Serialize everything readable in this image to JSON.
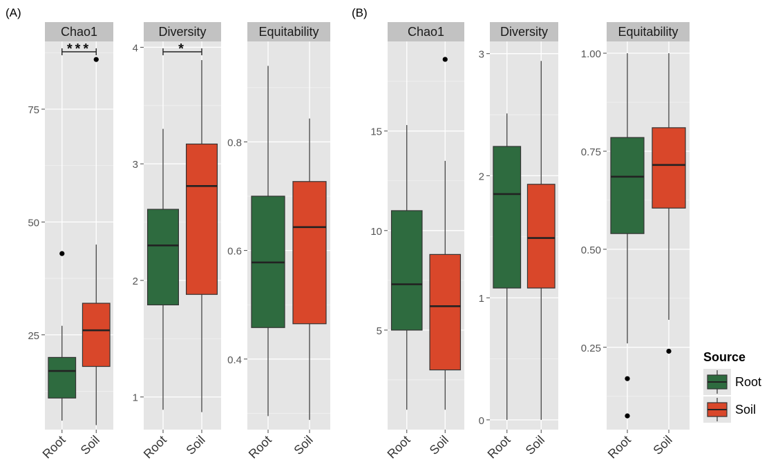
{
  "colors": {
    "Root": "#2e6b3f",
    "Soil": "#d9472a",
    "panel_bg": "#e5e5e5",
    "strip_bg": "#c2c2c2",
    "grid": "#ffffff",
    "box_outline": "#333333"
  },
  "legend": {
    "title": "Source",
    "entries": [
      "Root",
      "Soil"
    ],
    "placement": "right"
  },
  "figure_labels": [
    "(A)",
    "(B)"
  ],
  "chart_data": [
    {
      "type": "box",
      "figure": "(A)",
      "title": "Chao1",
      "categories": [
        "Root",
        "Soil"
      ],
      "ylim": [
        4,
        90
      ],
      "yticks": [
        25,
        50,
        75
      ],
      "ytick_labels": [
        "25",
        "50",
        "75"
      ],
      "boxes": [
        {
          "name": "Root",
          "min": 6,
          "q1": 11,
          "median": 17,
          "q3": 20,
          "max": 27,
          "outliers": [
            43
          ]
        },
        {
          "name": "Soil",
          "min": 5,
          "q1": 18,
          "median": 26,
          "q3": 32,
          "max": 45,
          "outliers": [
            86
          ]
        }
      ],
      "significance": "***"
    },
    {
      "type": "box",
      "figure": "(A)",
      "title": "Diversity",
      "categories": [
        "Root",
        "Soil"
      ],
      "ylim": [
        0.72,
        4.05
      ],
      "yticks": [
        1,
        2,
        3,
        4
      ],
      "ytick_labels": [
        "1",
        "2",
        "3",
        "4"
      ],
      "boxes": [
        {
          "name": "Root",
          "min": 0.89,
          "q1": 1.79,
          "median": 2.3,
          "q3": 2.61,
          "max": 3.3,
          "outliers": []
        },
        {
          "name": "Soil",
          "min": 0.87,
          "q1": 1.88,
          "median": 2.81,
          "q3": 3.17,
          "max": 3.89,
          "outliers": []
        }
      ],
      "significance": "*"
    },
    {
      "type": "box",
      "figure": "(A)",
      "title": "Equitability",
      "categories": [
        "Root",
        "Soil"
      ],
      "ylim": [
        0.27,
        0.985
      ],
      "yticks": [
        0.4,
        0.6,
        0.8
      ],
      "ytick_labels": [
        "0.4",
        "0.6",
        "0.8"
      ],
      "boxes": [
        {
          "name": "Root",
          "min": 0.295,
          "q1": 0.458,
          "median": 0.578,
          "q3": 0.7,
          "max": 0.94,
          "outliers": []
        },
        {
          "name": "Soil",
          "min": 0.288,
          "q1": 0.465,
          "median": 0.643,
          "q3": 0.727,
          "max": 0.843,
          "outliers": []
        }
      ],
      "significance": ""
    },
    {
      "type": "box",
      "figure": "(B)",
      "title": "Chao1",
      "categories": [
        "Root",
        "Soil"
      ],
      "ylim": [
        0,
        19.5
      ],
      "yticks": [
        5,
        10,
        15
      ],
      "ytick_labels": [
        "5",
        "10",
        "15"
      ],
      "boxes": [
        {
          "name": "Root",
          "min": 1,
          "q1": 5,
          "median": 7.3,
          "q3": 11,
          "max": 15.3,
          "outliers": []
        },
        {
          "name": "Soil",
          "min": 1,
          "q1": 3,
          "median": 6.2,
          "q3": 8.8,
          "max": 13.5,
          "outliers": [
            18.6
          ]
        }
      ],
      "significance": ""
    },
    {
      "type": "box",
      "figure": "(B)",
      "title": "Diversity",
      "categories": [
        "Root",
        "Soil"
      ],
      "ylim": [
        -0.08,
        3.1
      ],
      "yticks": [
        0,
        1,
        2,
        3
      ],
      "ytick_labels": [
        "0",
        "1",
        "2",
        "3"
      ],
      "boxes": [
        {
          "name": "Root",
          "min": 0,
          "q1": 1.08,
          "median": 1.85,
          "q3": 2.24,
          "max": 2.51,
          "outliers": []
        },
        {
          "name": "Soil",
          "min": 0,
          "q1": 1.08,
          "median": 1.49,
          "q3": 1.93,
          "max": 2.94,
          "outliers": []
        }
      ],
      "significance": ""
    },
    {
      "type": "box",
      "figure": "(B)",
      "title": "Equitability",
      "categories": [
        "Root",
        "Soil"
      ],
      "ylim": [
        0.04,
        1.03
      ],
      "yticks": [
        0.25,
        0.5,
        0.75,
        1.0
      ],
      "ytick_labels": [
        "0.25",
        "0.50",
        "0.75",
        "1.00"
      ],
      "boxes": [
        {
          "name": "Root",
          "min": 0.26,
          "q1": 0.54,
          "median": 0.685,
          "q3": 0.785,
          "max": 1.0,
          "outliers": [
            0.17,
            0.075
          ]
        },
        {
          "name": "Soil",
          "min": 0.32,
          "q1": 0.605,
          "median": 0.715,
          "q3": 0.81,
          "max": 1.0,
          "outliers": [
            0.24
          ]
        }
      ],
      "significance": ""
    }
  ]
}
